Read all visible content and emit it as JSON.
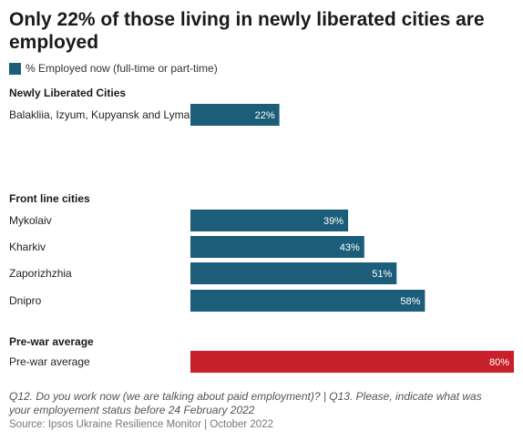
{
  "title": "Only 22% of those living in newly liberated cities are employed",
  "legend": {
    "label": "% Employed now (full-time or part-time)",
    "color": "#1c5e7a"
  },
  "colors": {
    "primary": "#1c5e7a",
    "highlight": "#c8202a"
  },
  "chart_data": {
    "type": "bar",
    "orientation": "horizontal",
    "xlim": [
      0,
      80
    ],
    "value_suffix": "%",
    "groups": [
      {
        "name": "Newly Liberated Cities",
        "categories": [
          "Balakliia, Izyum, Kupyansk and Lyman"
        ],
        "values": [
          22
        ]
      },
      {
        "name": "Front line cities",
        "categories": [
          "Mykolaiv",
          "Kharkiv",
          "Zaporizhzhia",
          "Dnipro"
        ],
        "values": [
          39,
          43,
          51,
          58
        ]
      },
      {
        "name": "Pre-war average",
        "categories": [
          "Pre-war average"
        ],
        "values": [
          80
        ],
        "highlight": true
      }
    ],
    "series": [
      {
        "name": "% Employed now (full-time or part-time)"
      }
    ]
  },
  "footnote": "Q12. Do you work now (we are talking about paid employment)? | Q13. Please, indicate what was your employement status before 24 February 2022",
  "source": "Source: Ipsos Ukraine Resilience Monitor | October 2022"
}
